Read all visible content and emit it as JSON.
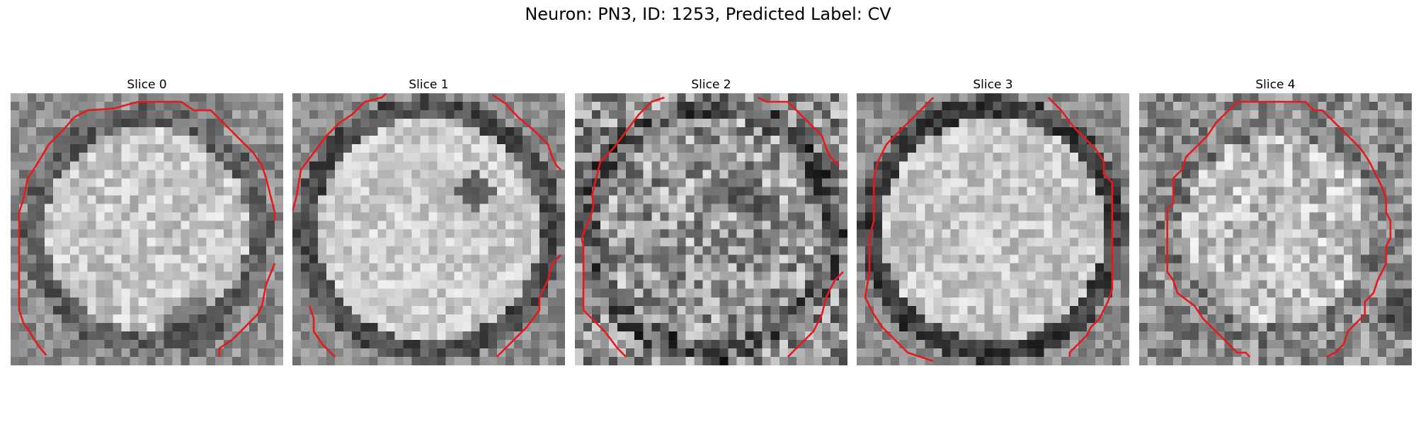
{
  "figure": {
    "title": "Neuron: PN3, ID: 1253, Predicted Label: CV"
  },
  "panels": [
    {
      "title": "Slice 0",
      "image_description_icon": "grayscale-cell-slice-image",
      "contour_color": "#e8191a"
    },
    {
      "title": "Slice 1",
      "image_description_icon": "grayscale-cell-slice-image",
      "contour_color": "#e8191a"
    },
    {
      "title": "Slice 2",
      "image_description_icon": "grayscale-cell-slice-image",
      "contour_color": "#e8191a"
    },
    {
      "title": "Slice 3",
      "image_description_icon": "grayscale-cell-slice-image",
      "contour_color": "#e8191a"
    },
    {
      "title": "Slice 4",
      "image_description_icon": "grayscale-cell-slice-image",
      "contour_color": "#e8191a"
    }
  ]
}
